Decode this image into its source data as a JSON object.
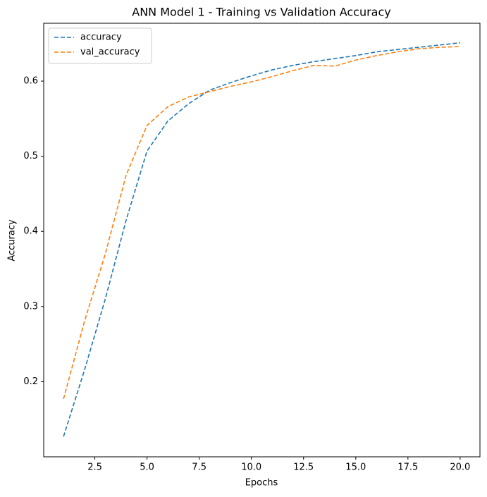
{
  "chart_data": {
    "type": "line",
    "title": "ANN Model 1 - Training vs Validation Accuracy",
    "xlabel": "Epochs",
    "ylabel": "Accuracy",
    "x": [
      1,
      2,
      3,
      4,
      5,
      6,
      7,
      8,
      9,
      10,
      11,
      12,
      13,
      14,
      15,
      16,
      17,
      18,
      19,
      20
    ],
    "series": [
      {
        "name": "accuracy",
        "color": "#1f77b4",
        "values": [
          0.127,
          0.215,
          0.31,
          0.415,
          0.507,
          0.547,
          0.57,
          0.588,
          0.598,
          0.607,
          0.615,
          0.621,
          0.626,
          0.63,
          0.634,
          0.639,
          0.642,
          0.645,
          0.648,
          0.651
        ]
      },
      {
        "name": "val_accuracy",
        "color": "#ff7f0e",
        "values": [
          0.177,
          0.28,
          0.37,
          0.475,
          0.541,
          0.566,
          0.579,
          0.586,
          0.593,
          0.599,
          0.606,
          0.614,
          0.621,
          0.62,
          0.628,
          0.634,
          0.639,
          0.643,
          0.645,
          0.646
        ]
      }
    ],
    "xlim": [
      0.05,
      20.95
    ],
    "ylim": [
      0.1,
      0.677
    ],
    "xticks": [
      {
        "value": 2.5,
        "label": "2.5"
      },
      {
        "value": 5,
        "label": "5.0"
      },
      {
        "value": 7.5,
        "label": "7.5"
      },
      {
        "value": 10,
        "label": "10.0"
      },
      {
        "value": 12.5,
        "label": "12.5"
      },
      {
        "value": 15,
        "label": "15.0"
      },
      {
        "value": 17.5,
        "label": "17.5"
      },
      {
        "value": 20,
        "label": "20.0"
      }
    ],
    "yticks": [
      0.2,
      0.3,
      0.4,
      0.5,
      0.6
    ],
    "line_style": "dashed",
    "legend": "upper left",
    "grid": false
  }
}
